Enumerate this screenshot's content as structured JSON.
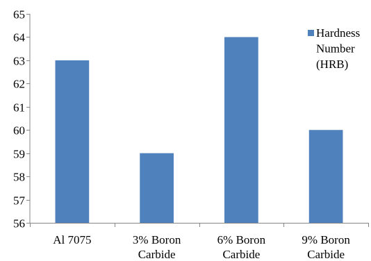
{
  "chart_data": {
    "type": "bar",
    "categories": [
      [
        "Al 7075"
      ],
      [
        "3% Boron",
        "Carbide"
      ],
      [
        "6% Boron",
        "Carbide"
      ],
      [
        "9% Boron",
        "Carbide"
      ]
    ],
    "series": [
      {
        "name": "Hardness Number (HRB)",
        "values": [
          63,
          59,
          64,
          60
        ],
        "color": "#4f81bd"
      }
    ],
    "ylim": [
      56,
      65
    ],
    "yticks": [
      56,
      57,
      58,
      59,
      60,
      61,
      62,
      63,
      64,
      65
    ],
    "grid": false,
    "legend": {
      "position": "top-right",
      "lines": [
        "Hardness",
        "Number",
        "(HRB)"
      ]
    }
  }
}
